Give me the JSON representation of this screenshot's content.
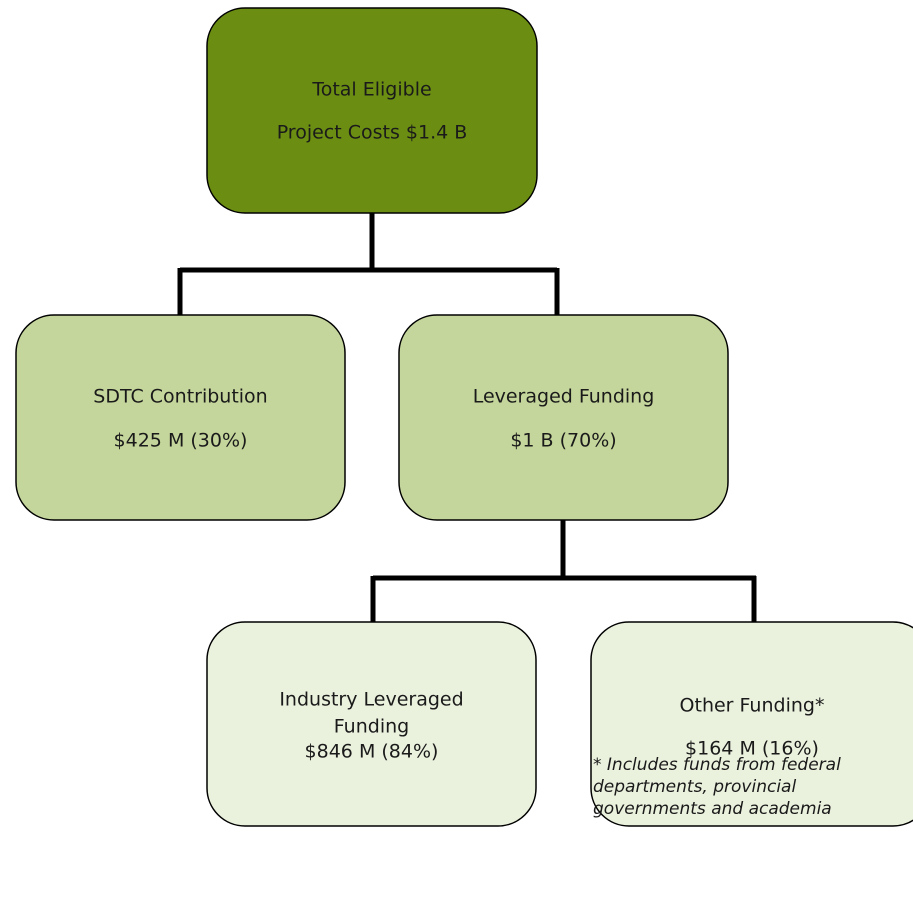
{
  "nodes": [
    {
      "lines": [
        "Total Eligible",
        "Project Costs $1.4 B"
      ]
    },
    {
      "lines": [
        "SDTC Contribution",
        "$425 M (30%)"
      ]
    },
    {
      "lines": [
        "Leveraged Funding",
        "$1 B (70%)"
      ]
    },
    {
      "lines": [
        "Industry Leveraged",
        "Funding",
        "$846 M (84%)"
      ]
    },
    {
      "lines": [
        "Other Funding*",
        "$164 M (16%)"
      ]
    }
  ],
  "footnote": [
    "* Includes funds from federal",
    "departments, provincial",
    "governments and academia"
  ]
}
